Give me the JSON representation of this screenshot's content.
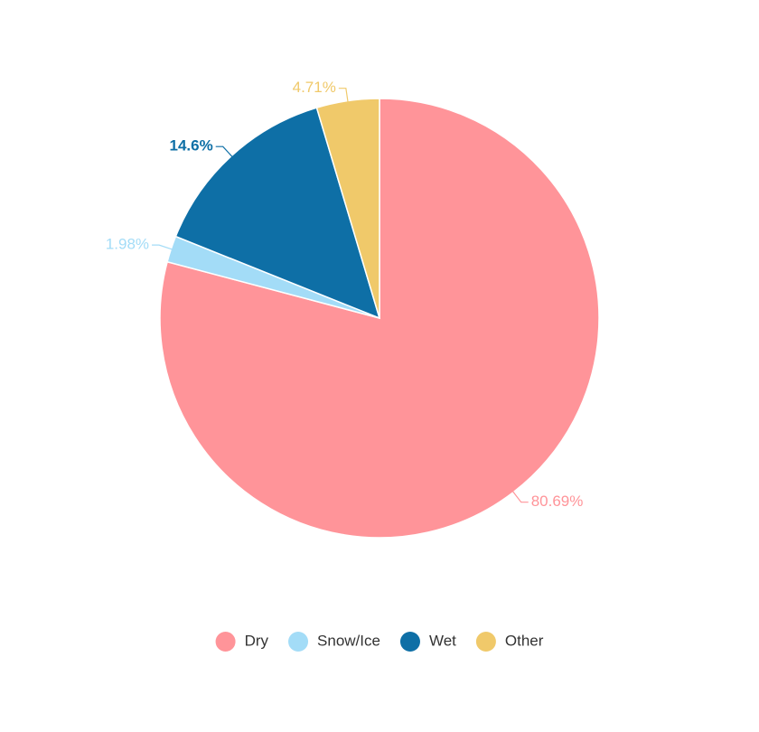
{
  "chart_data": {
    "type": "pie",
    "categories": [
      "Dry",
      "Snow/Ice",
      "Wet",
      "Other"
    ],
    "values": [
      80.69,
      1.98,
      14.6,
      4.71
    ],
    "value_labels": [
      "80.69%",
      "1.98%",
      "14.6%",
      "4.71%"
    ],
    "colors": [
      "#ff9499",
      "#a3dcf7",
      "#0e6fa6",
      "#f0c96a"
    ],
    "legend": "bottom"
  }
}
